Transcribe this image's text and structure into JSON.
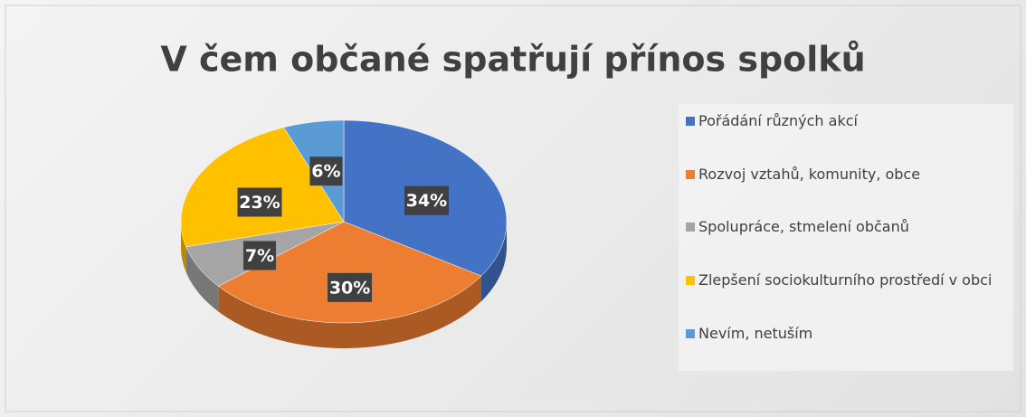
{
  "chart_data": {
    "type": "pie",
    "title": "V čem občané spatřují přínos spolků",
    "categories": [
      "Pořádání různých akcí",
      "Rozvoj vztahů, komunity, obce",
      "Spolupráce, stmelení občanů",
      "Zlepšení sociokulturního prostředí v obci",
      "Nevím, netuším"
    ],
    "values": [
      34,
      30,
      7,
      23,
      6
    ],
    "value_labels": [
      "34%",
      "30%",
      "7%",
      "23%",
      "6%"
    ],
    "colors": [
      "#4472c4",
      "#ed7d31",
      "#a5a5a5",
      "#ffc000",
      "#5b9bd5"
    ],
    "legend": "right"
  }
}
